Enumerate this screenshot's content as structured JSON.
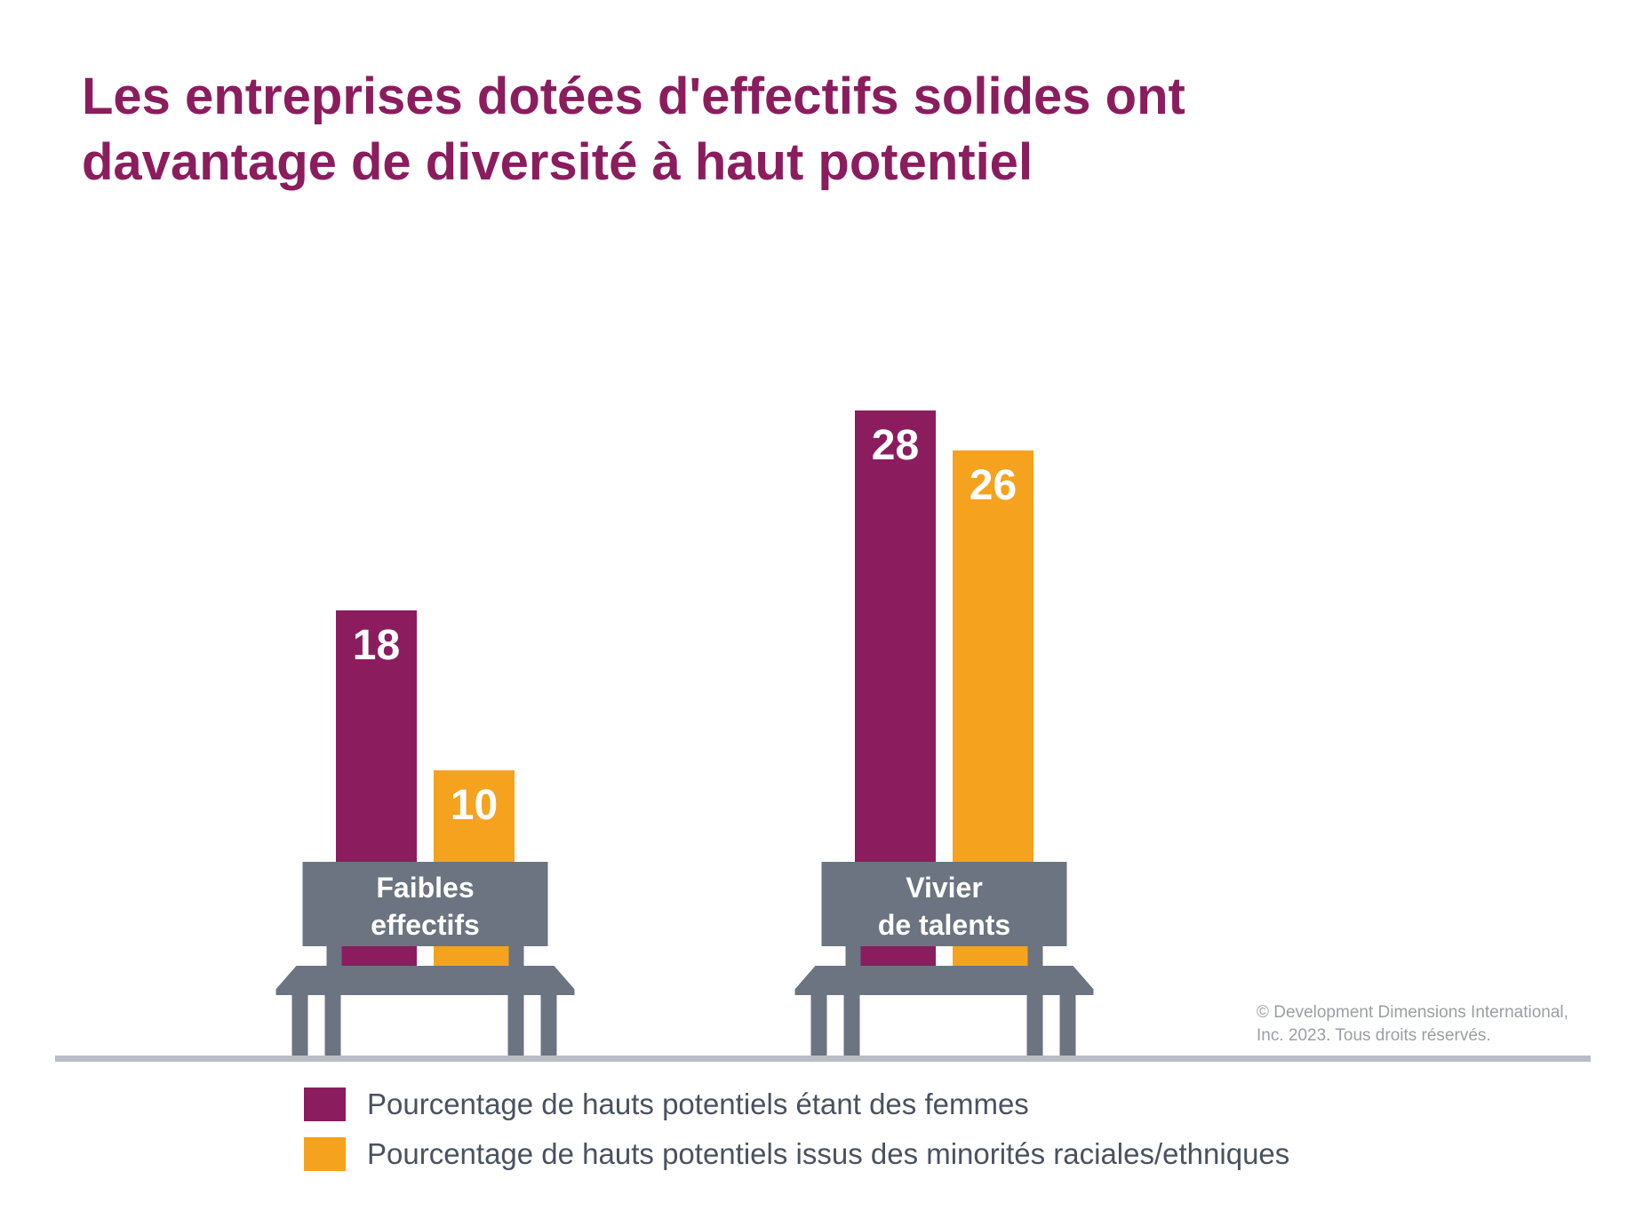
{
  "title_lines": [
    "Les entreprises dotées d'effectifs solides ont",
    "davantage de diversité à haut potentiel"
  ],
  "copyright_lines": [
    "© Development Dimensions International,",
    "Inc. 2023. Tous droits réservés."
  ],
  "colors": {
    "women": "#8b1d5e",
    "minorities": "#f5a21f",
    "bench": "#6b7480",
    "ground": "#b9bec4",
    "title": "#8b1d5e"
  },
  "legend": [
    {
      "label": "Pourcentage de hauts potentiels étant des femmes",
      "color": "#8b1d5e"
    },
    {
      "label": "Pourcentage de hauts potentiels issus des minorités raciales/ethniques",
      "color": "#f5a21f"
    }
  ],
  "chart_data": {
    "type": "bar",
    "categories": [
      "Faibles effectifs",
      "Vivier de talents"
    ],
    "category_lines": [
      [
        "Faibles",
        "effectifs"
      ],
      [
        "Vivier",
        "de talents"
      ]
    ],
    "series": [
      {
        "name": "Pourcentage de hauts potentiels étant des femmes",
        "values": [
          18,
          28
        ]
      },
      {
        "name": "Pourcentage de hauts potentiels issus des minorités raciales/ethniques",
        "values": [
          10,
          26
        ]
      }
    ],
    "title": "Les entreprises dotées d'effectifs solides ont davantage de diversité à haut potentiel",
    "grid": false,
    "legend_position": "bottom"
  }
}
